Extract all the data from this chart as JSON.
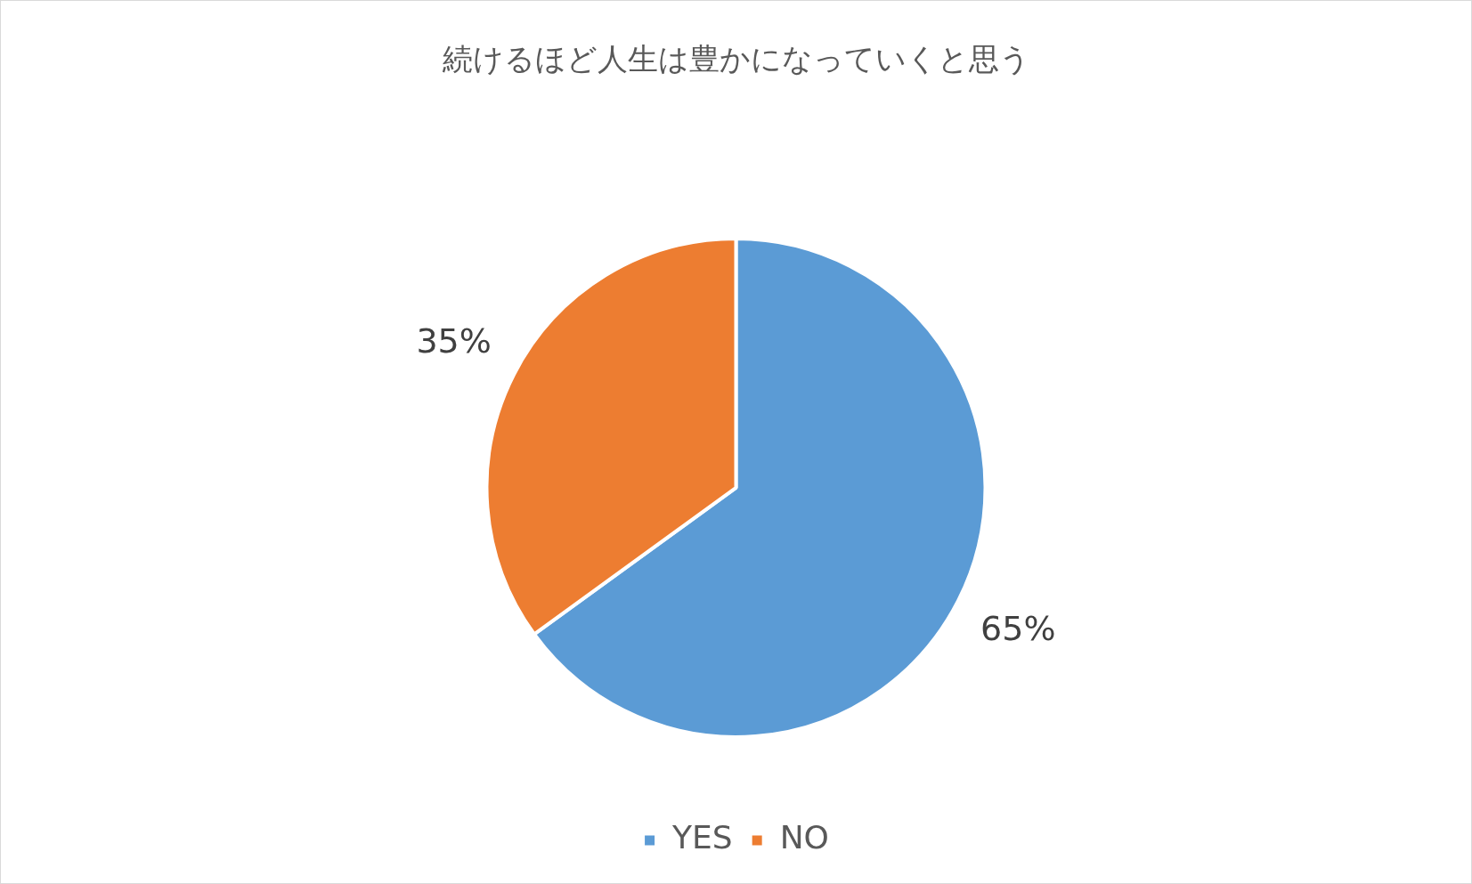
{
  "chart_data": {
    "type": "pie",
    "title": "続けるほど人生は豊かになっていくと思う",
    "categories": [
      "YES",
      "NO"
    ],
    "values": [
      65,
      35
    ],
    "value_labels": [
      "65%",
      "35%"
    ],
    "colors": [
      "#5b9bd5",
      "#ed7d31"
    ],
    "legend": "bottom"
  }
}
